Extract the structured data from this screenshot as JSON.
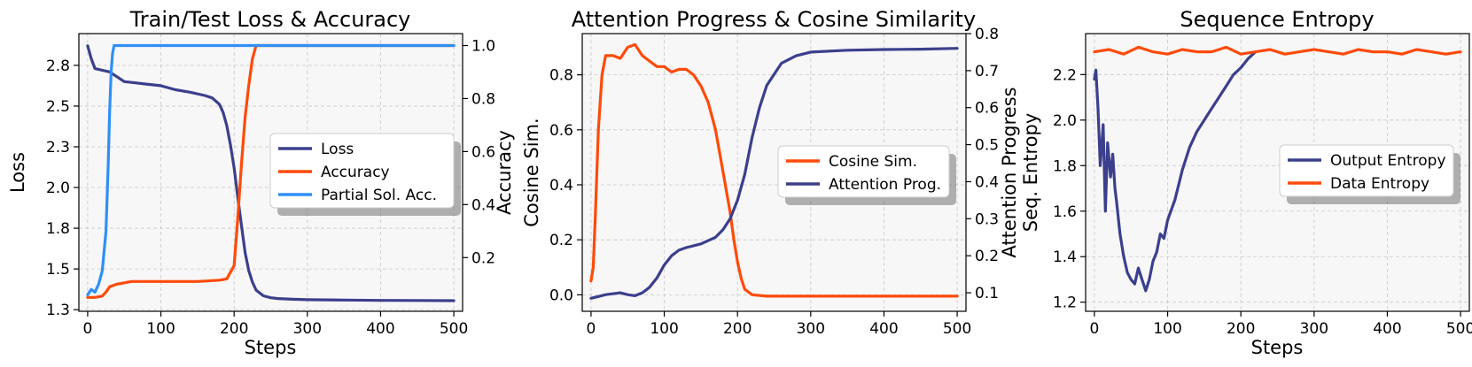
{
  "colors": {
    "navy": "#3b3f8c",
    "orange": "#ff4a0a",
    "blue": "#2f8ff7",
    "plot_bg": "#f7f7f7",
    "grid": "#c8c8c8"
  },
  "chart_data": [
    {
      "type": "line",
      "title": "Train/Test Loss & Accuracy",
      "xlabel": "Steps",
      "ylabel": "Loss",
      "ylabel_right": "Accuracy",
      "xlim": [
        -12,
        512
      ],
      "ylim": [
        1.24,
        2.945
      ],
      "ylim_right": [
        -0.0025,
        1.045
      ],
      "xticks": [
        0,
        100,
        200,
        300,
        400,
        500
      ],
      "yticks": [
        1.25,
        1.5,
        1.75,
        2.0,
        2.25,
        2.5,
        2.75
      ],
      "yticks_right": [
        0.2,
        0.4,
        0.6,
        0.8,
        1.0
      ],
      "legend_location": "center-right",
      "series": [
        {
          "name": "Loss",
          "axis": "left",
          "color": "#3b3f8c",
          "x": [
            0,
            5,
            10,
            20,
            30,
            40,
            50,
            60,
            80,
            100,
            120,
            140,
            160,
            170,
            180,
            185,
            190,
            195,
            200,
            205,
            210,
            215,
            220,
            225,
            230,
            240,
            250,
            260,
            280,
            300,
            350,
            400,
            450,
            500
          ],
          "y": [
            2.87,
            2.79,
            2.73,
            2.72,
            2.71,
            2.68,
            2.65,
            2.645,
            2.635,
            2.625,
            2.6,
            2.585,
            2.565,
            2.55,
            2.51,
            2.46,
            2.38,
            2.26,
            2.12,
            1.94,
            1.77,
            1.6,
            1.49,
            1.42,
            1.37,
            1.335,
            1.323,
            1.318,
            1.314,
            1.311,
            1.309,
            1.307,
            1.306,
            1.305
          ]
        },
        {
          "name": "Accuracy",
          "axis": "right",
          "color": "#ff4a0a",
          "x": [
            0,
            10,
            20,
            25,
            30,
            40,
            60,
            100,
            150,
            180,
            190,
            200,
            205,
            210,
            215,
            220,
            225,
            230,
            240,
            300,
            400,
            500
          ],
          "y": [
            0.05,
            0.05,
            0.055,
            0.07,
            0.09,
            0.1,
            0.11,
            0.11,
            0.11,
            0.115,
            0.12,
            0.17,
            0.35,
            0.55,
            0.73,
            0.85,
            0.95,
            1.0,
            1.0,
            1.0,
            1.0,
            1.0
          ]
        },
        {
          "name": "Partial Sol. Acc.",
          "axis": "right",
          "color": "#2f8ff7",
          "x": [
            0,
            5,
            10,
            15,
            20,
            25,
            28,
            30,
            32,
            34,
            36,
            40,
            60,
            100,
            200,
            300,
            400,
            500
          ],
          "y": [
            0.06,
            0.08,
            0.07,
            0.1,
            0.15,
            0.3,
            0.55,
            0.75,
            0.9,
            0.97,
            1.0,
            1.0,
            1.0,
            1.0,
            1.0,
            1.0,
            1.0,
            1.0
          ]
        }
      ]
    },
    {
      "type": "line",
      "title": "Attention Progress & Cosine Similarity",
      "xlabel": "",
      "ylabel": "Cosine Sim.",
      "ylabel_right": "Attention Progress",
      "xlim": [
        -12,
        512
      ],
      "ylim": [
        -0.06,
        0.95
      ],
      "ylim_right": [
        0.05,
        0.8
      ],
      "xticks": [
        0,
        100,
        200,
        300,
        400,
        500
      ],
      "yticks": [
        0.0,
        0.2,
        0.4,
        0.6,
        0.8
      ],
      "yticks_right": [
        0.1,
        0.2,
        0.3,
        0.4,
        0.5,
        0.6,
        0.7,
        0.8
      ],
      "legend_location": "center-right",
      "series": [
        {
          "name": "Cosine Sim.",
          "axis": "left",
          "color": "#ff4a0a",
          "x": [
            0,
            3,
            6,
            10,
            15,
            20,
            30,
            40,
            50,
            60,
            70,
            80,
            90,
            100,
            110,
            120,
            130,
            140,
            150,
            160,
            170,
            180,
            190,
            195,
            200,
            205,
            210,
            220,
            240,
            300,
            400,
            500
          ],
          "y": [
            0.05,
            0.1,
            0.3,
            0.6,
            0.8,
            0.87,
            0.87,
            0.86,
            0.9,
            0.91,
            0.87,
            0.85,
            0.83,
            0.83,
            0.81,
            0.82,
            0.82,
            0.8,
            0.76,
            0.7,
            0.6,
            0.45,
            0.3,
            0.2,
            0.12,
            0.06,
            0.02,
            0.0,
            -0.005,
            -0.005,
            -0.005,
            -0.005
          ]
        },
        {
          "name": "Attention Prog.",
          "axis": "right",
          "color": "#3b3f8c",
          "x": [
            0,
            10,
            20,
            40,
            50,
            60,
            70,
            80,
            90,
            100,
            110,
            120,
            130,
            150,
            170,
            180,
            190,
            200,
            210,
            220,
            230,
            240,
            260,
            280,
            300,
            350,
            400,
            450,
            500
          ],
          "y": [
            0.085,
            0.09,
            0.095,
            0.1,
            0.095,
            0.092,
            0.1,
            0.115,
            0.14,
            0.175,
            0.2,
            0.215,
            0.222,
            0.232,
            0.25,
            0.27,
            0.3,
            0.35,
            0.42,
            0.52,
            0.6,
            0.66,
            0.72,
            0.74,
            0.75,
            0.755,
            0.757,
            0.758,
            0.76
          ]
        }
      ]
    },
    {
      "type": "line",
      "title": "Sequence Entropy",
      "xlabel": "Steps",
      "ylabel": "Seq. Entropy",
      "xlim": [
        -12,
        512
      ],
      "ylim": [
        1.16,
        2.38
      ],
      "xticks": [
        0,
        100,
        200,
        300,
        400,
        500
      ],
      "yticks": [
        1.2,
        1.4,
        1.6,
        1.8,
        2.0,
        2.2
      ],
      "legend_location": "center-right",
      "series": [
        {
          "name": "Output Entropy",
          "axis": "left",
          "color": "#3b3f8c",
          "x": [
            0,
            2,
            5,
            8,
            12,
            15,
            18,
            22,
            25,
            28,
            30,
            35,
            40,
            45,
            50,
            55,
            60,
            65,
            70,
            75,
            80,
            85,
            90,
            95,
            100,
            110,
            120,
            130,
            140,
            150,
            160,
            170,
            180,
            190,
            200,
            210,
            220
          ],
          "y": [
            2.18,
            2.22,
            2.05,
            1.8,
            1.98,
            1.6,
            1.9,
            1.75,
            1.85,
            1.7,
            1.65,
            1.5,
            1.4,
            1.33,
            1.3,
            1.28,
            1.35,
            1.3,
            1.25,
            1.3,
            1.38,
            1.42,
            1.5,
            1.48,
            1.56,
            1.65,
            1.78,
            1.88,
            1.95,
            2.0,
            2.05,
            2.1,
            2.15,
            2.2,
            2.23,
            2.27,
            2.3
          ]
        },
        {
          "name": "Data Entropy",
          "axis": "left",
          "color": "#ff4a0a",
          "x": [
            0,
            20,
            40,
            60,
            80,
            100,
            120,
            140,
            160,
            180,
            200,
            220,
            240,
            260,
            280,
            300,
            320,
            340,
            360,
            380,
            400,
            420,
            440,
            460,
            480,
            500
          ],
          "y": [
            2.3,
            2.31,
            2.29,
            2.32,
            2.3,
            2.29,
            2.31,
            2.3,
            2.3,
            2.32,
            2.29,
            2.3,
            2.31,
            2.29,
            2.3,
            2.31,
            2.3,
            2.29,
            2.31,
            2.3,
            2.3,
            2.29,
            2.31,
            2.3,
            2.29,
            2.3
          ]
        }
      ]
    }
  ]
}
